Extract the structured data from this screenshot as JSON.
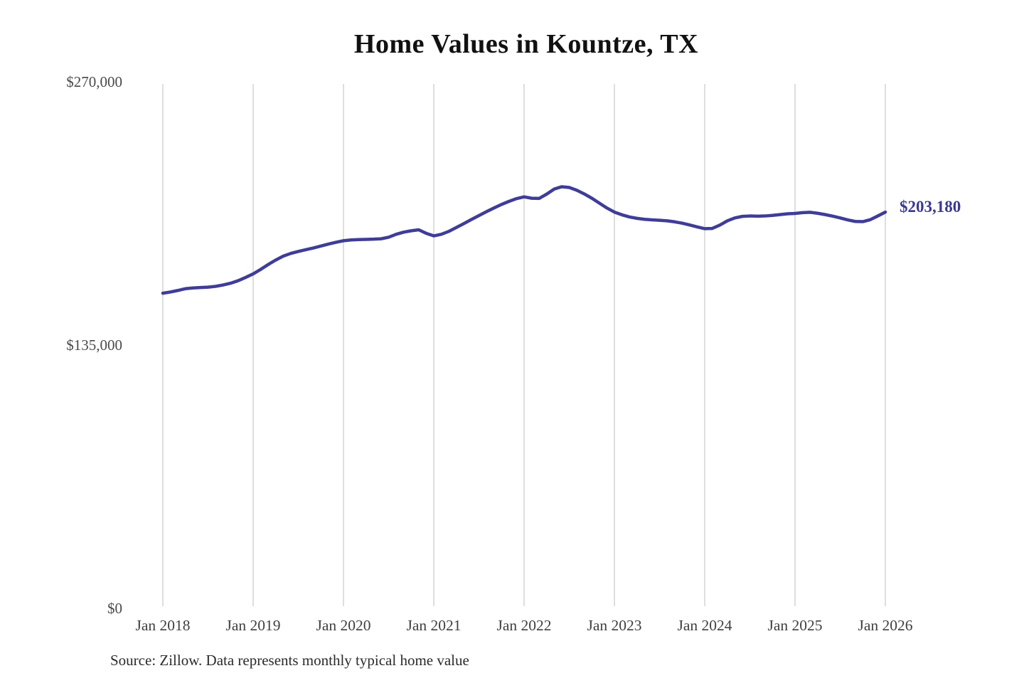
{
  "title": "Home Values in Kountze, TX",
  "source_note": "Source: Zillow. Data represents monthly typical home value",
  "end_label": "$203,180",
  "colors": {
    "line": "#3f3d96",
    "end_label": "#3b3990",
    "gridline": "#c9c9c9",
    "y_tick_text": "#4a4a4a",
    "x_tick_text": "#3f3f3f",
    "title_text": "#111111",
    "source_text": "#2b2b2b",
    "background": "#ffffff"
  },
  "chart_data": {
    "type": "line",
    "title": "Home Values in Kountze, TX",
    "xlabel": "",
    "ylabel": "",
    "ylim": [
      0,
      270000
    ],
    "grid": "vertical-only",
    "legend": "none",
    "frequency": "monthly",
    "x_start": "Jan 2018",
    "x_end": "Jan 2026",
    "x_tick_labels": [
      "Jan 2018",
      "Jan 2019",
      "Jan 2020",
      "Jan 2021",
      "Jan 2022",
      "Jan 2023",
      "Jan 2024",
      "Jan 2025",
      "Jan 2026"
    ],
    "y_ticks": [
      {
        "label": "$0",
        "value": 0
      },
      {
        "label": "$135,000",
        "value": 135000
      },
      {
        "label": "$270,000",
        "value": 270000
      }
    ],
    "series": [
      {
        "name": "Monthly typical home value",
        "values": [
          161600,
          162200,
          163000,
          163900,
          164300,
          164500,
          164700,
          165100,
          165800,
          166700,
          168000,
          169700,
          171500,
          173800,
          176300,
          178600,
          180600,
          182000,
          183000,
          183900,
          184800,
          185800,
          186800,
          187700,
          188500,
          188900,
          189100,
          189200,
          189300,
          189500,
          190300,
          191800,
          192900,
          193600,
          194100,
          192300,
          191000,
          191800,
          193300,
          195300,
          197300,
          199400,
          201400,
          203400,
          205300,
          207100,
          208700,
          210100,
          211000,
          210300,
          210200,
          212400,
          215000,
          216200,
          215800,
          214400,
          212500,
          210300,
          207800,
          205300,
          203200,
          201800,
          200700,
          200000,
          199500,
          199200,
          199000,
          198700,
          198200,
          197500,
          196600,
          195600,
          194700,
          194800,
          196500,
          198700,
          200200,
          201000,
          201200,
          201100,
          201200,
          201500,
          201900,
          202300,
          202500,
          202900,
          203100,
          202600,
          201900,
          201100,
          200200,
          199200,
          198400,
          198300,
          199300,
          201200,
          203180
        ]
      }
    ],
    "last_value": 203180,
    "last_value_label": "$203,180"
  }
}
